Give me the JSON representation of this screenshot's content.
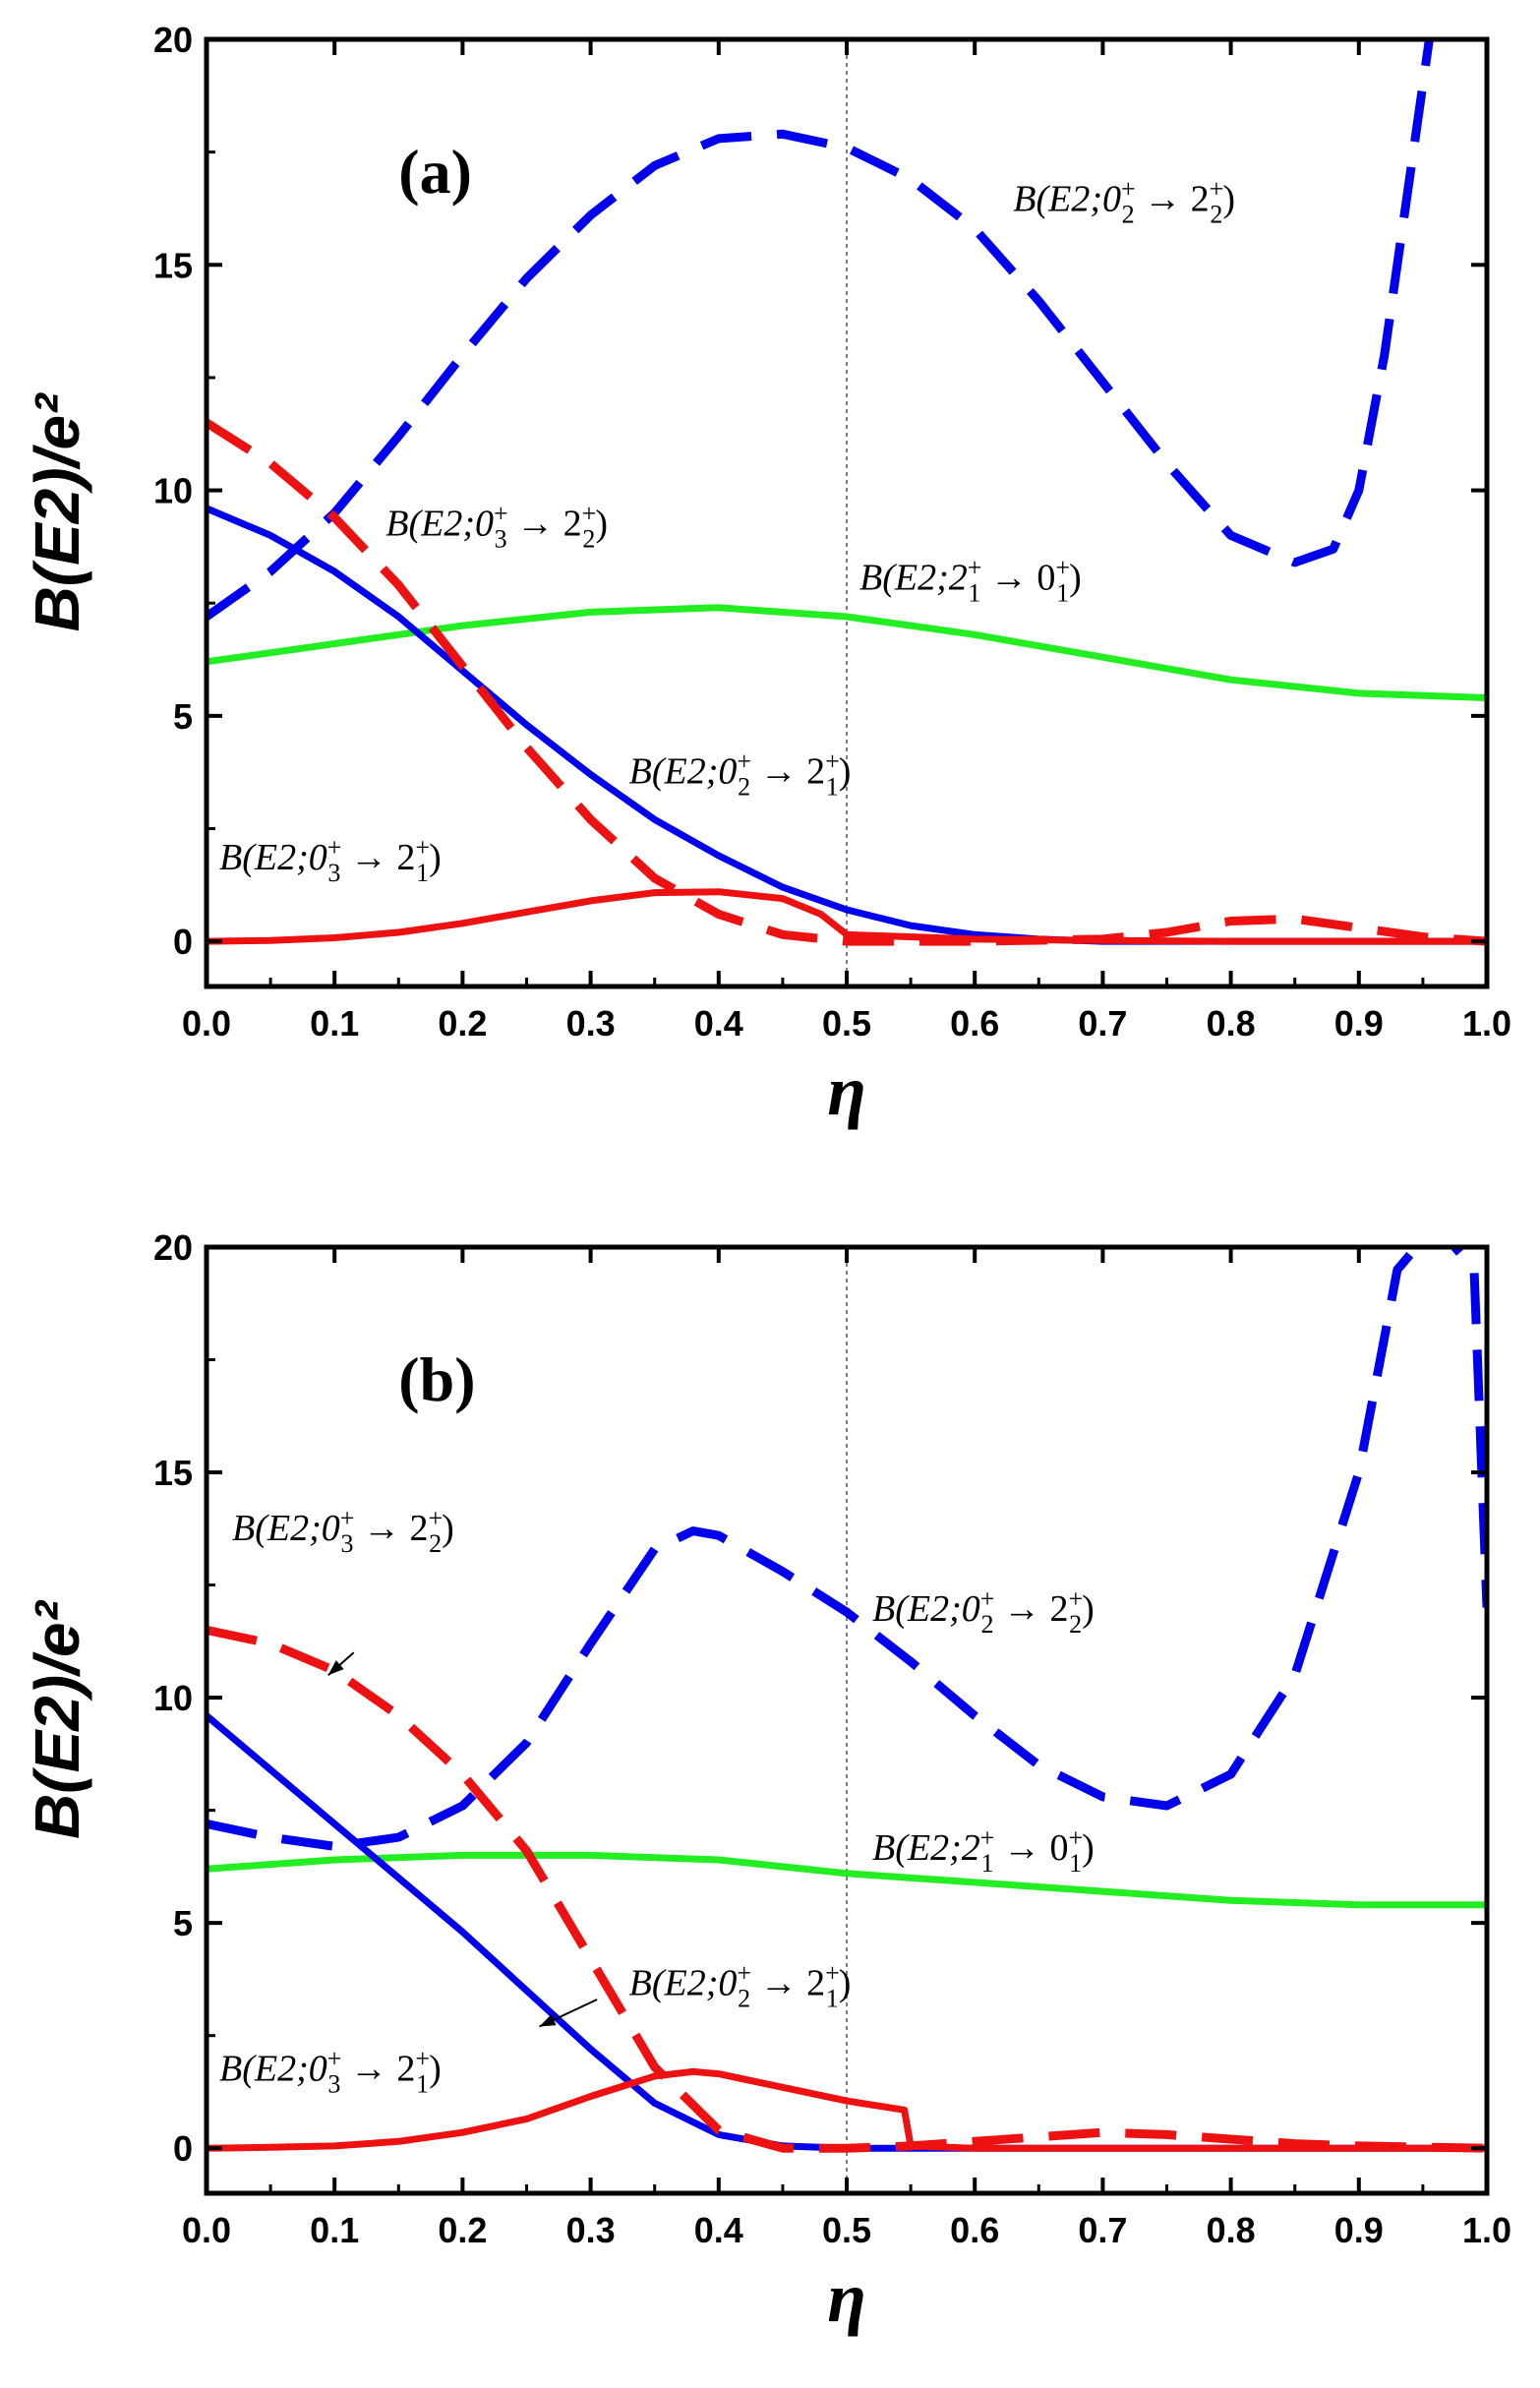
{
  "chart_data": [
    {
      "type": "line",
      "panel_label": "(a)",
      "xlabel": "η",
      "ylabel": "B(E2)/e²",
      "xlim": [
        0.0,
        1.0
      ],
      "ylim": [
        -1.0,
        20.0
      ],
      "xticks": [
        "0.0",
        "0.1",
        "0.2",
        "0.3",
        "0.4",
        "0.5",
        "0.6",
        "0.7",
        "0.8",
        "0.9",
        "1.0"
      ],
      "yticks": [
        "0",
        "5",
        "10",
        "15",
        "20"
      ],
      "reference_line_x": 0.5,
      "series": [
        {
          "name": "B(E2;0_2^+ → 2_2^+)",
          "color": "#0000ee",
          "style": "dashed",
          "x": [
            0.0,
            0.05,
            0.1,
            0.15,
            0.2,
            0.25,
            0.3,
            0.35,
            0.4,
            0.45,
            0.5,
            0.55,
            0.6,
            0.65,
            0.7,
            0.75,
            0.8,
            0.85,
            0.88,
            0.9,
            0.92,
            0.94,
            0.96
          ],
          "y": [
            7.2,
            8.2,
            9.5,
            11.2,
            13.0,
            14.7,
            16.1,
            17.2,
            17.8,
            17.9,
            17.6,
            16.9,
            15.8,
            14.2,
            12.4,
            10.6,
            9.0,
            8.4,
            8.7,
            10.0,
            13.0,
            17.0,
            21.0
          ]
        },
        {
          "name": "B(E2;2_1^+ → 0_1^+)",
          "color": "#22ee22",
          "style": "solid",
          "x": [
            0.0,
            0.1,
            0.2,
            0.3,
            0.4,
            0.5,
            0.6,
            0.7,
            0.8,
            0.9,
            1.0
          ],
          "y": [
            6.2,
            6.6,
            7.0,
            7.3,
            7.4,
            7.2,
            6.8,
            6.3,
            5.8,
            5.5,
            5.4
          ]
        },
        {
          "name": "B(E2;0_2^+ → 2_1^+)",
          "color": "#0000ee",
          "style": "solid",
          "x": [
            0.0,
            0.05,
            0.1,
            0.15,
            0.2,
            0.25,
            0.3,
            0.35,
            0.4,
            0.45,
            0.5,
            0.55,
            0.6,
            0.65,
            0.7,
            0.8,
            0.9,
            1.0
          ],
          "y": [
            9.6,
            9.0,
            8.2,
            7.2,
            6.0,
            4.8,
            3.7,
            2.7,
            1.9,
            1.2,
            0.7,
            0.35,
            0.15,
            0.05,
            0.0,
            0.0,
            0.0,
            0.0
          ]
        },
        {
          "name": "B(E2;0_3^+ → 2_2^+)",
          "color": "#ee1111",
          "style": "dashed",
          "x": [
            0.0,
            0.05,
            0.1,
            0.15,
            0.2,
            0.25,
            0.3,
            0.35,
            0.4,
            0.45,
            0.5,
            0.6,
            0.7,
            0.75,
            0.8,
            0.85,
            0.9,
            0.95,
            1.0
          ],
          "y": [
            11.5,
            10.6,
            9.4,
            7.9,
            6.1,
            4.3,
            2.7,
            1.4,
            0.6,
            0.15,
            0.0,
            0.0,
            0.05,
            0.2,
            0.45,
            0.5,
            0.3,
            0.1,
            0.0
          ]
        },
        {
          "name": "B(E2;0_3^+ → 2_1^+)",
          "color": "#ee1111",
          "style": "solid",
          "x": [
            0.0,
            0.05,
            0.1,
            0.15,
            0.2,
            0.25,
            0.3,
            0.35,
            0.4,
            0.45,
            0.48,
            0.5,
            0.6,
            0.7,
            0.8,
            0.9,
            1.0
          ],
          "y": [
            0.0,
            0.02,
            0.08,
            0.2,
            0.4,
            0.65,
            0.9,
            1.08,
            1.1,
            0.95,
            0.6,
            0.15,
            0.05,
            0.02,
            0.0,
            0.0,
            0.0
          ]
        }
      ],
      "annotations": [
        {
          "base": "B(E2;0",
          "sub1": "2",
          "mid": " → 2",
          "sub2": "2",
          "end": ")",
          "at": [
            0.63,
            16.2
          ]
        },
        {
          "base": "B(E2;0",
          "sub1": "3",
          "mid": " → 2",
          "sub2": "2",
          "end": ")",
          "at": [
            0.14,
            9.0
          ]
        },
        {
          "base": "B(E2;2",
          "sub1": "1",
          "mid": " → 0",
          "sub2": "1",
          "end": ")",
          "at": [
            0.51,
            7.8
          ]
        },
        {
          "base": "B(E2;0",
          "sub1": "2",
          "mid": " → 2",
          "sub2": "1",
          "end": ")",
          "at": [
            0.33,
            3.5
          ]
        },
        {
          "base": "B(E2;0",
          "sub1": "3",
          "mid": " → 2",
          "sub2": "1",
          "end": ")",
          "at": [
            0.01,
            1.6
          ]
        }
      ]
    },
    {
      "type": "line",
      "panel_label": "(b)",
      "xlabel": "η",
      "ylabel": "B(E2)/e²",
      "xlim": [
        0.0,
        1.0
      ],
      "ylim": [
        -1.0,
        20.0
      ],
      "xticks": [
        "0.0",
        "0.1",
        "0.2",
        "0.3",
        "0.4",
        "0.5",
        "0.6",
        "0.7",
        "0.8",
        "0.9",
        "1.0"
      ],
      "yticks": [
        "0",
        "5",
        "10",
        "15",
        "20"
      ],
      "reference_line_x": 0.5,
      "series": [
        {
          "name": "B(E2;0_2^+ → 2_2^+)",
          "color": "#0000ee",
          "style": "dashed",
          "x": [
            0.0,
            0.05,
            0.1,
            0.15,
            0.2,
            0.25,
            0.3,
            0.35,
            0.38,
            0.4,
            0.45,
            0.5,
            0.55,
            0.6,
            0.65,
            0.7,
            0.75,
            0.8,
            0.85,
            0.9,
            0.93,
            0.96,
            0.99,
            1.0
          ],
          "y": [
            7.2,
            6.9,
            6.7,
            6.9,
            7.6,
            9.0,
            11.2,
            13.3,
            13.7,
            13.6,
            12.8,
            11.9,
            10.8,
            9.6,
            8.5,
            7.8,
            7.6,
            8.3,
            10.5,
            15.0,
            19.5,
            20.5,
            19.5,
            12.0
          ]
        },
        {
          "name": "B(E2;2_1^+ → 0_1^+)",
          "color": "#22ee22",
          "style": "solid",
          "x": [
            0.0,
            0.1,
            0.2,
            0.3,
            0.4,
            0.5,
            0.6,
            0.7,
            0.8,
            0.9,
            1.0
          ],
          "y": [
            6.2,
            6.4,
            6.5,
            6.5,
            6.4,
            6.1,
            5.9,
            5.7,
            5.5,
            5.4,
            5.4
          ]
        },
        {
          "name": "B(E2;0_2^+ → 2_1^+)",
          "color": "#0000ee",
          "style": "solid",
          "x": [
            0.0,
            0.05,
            0.1,
            0.15,
            0.2,
            0.25,
            0.3,
            0.35,
            0.4,
            0.45,
            0.5,
            0.55,
            0.6,
            0.7,
            0.8,
            0.9,
            1.0
          ],
          "y": [
            9.6,
            8.4,
            7.2,
            6.0,
            4.8,
            3.5,
            2.2,
            1.0,
            0.3,
            0.05,
            0.0,
            0.0,
            0.0,
            0.0,
            0.0,
            0.0,
            0.0
          ]
        },
        {
          "name": "B(E2;0_3^+ → 2_2^+)",
          "color": "#ee1111",
          "style": "dashed",
          "x": [
            0.0,
            0.05,
            0.1,
            0.15,
            0.2,
            0.25,
            0.3,
            0.35,
            0.4,
            0.45,
            0.5,
            0.55,
            0.6,
            0.65,
            0.7,
            0.75,
            0.8,
            0.85,
            0.9,
            1.0
          ],
          "y": [
            11.5,
            11.2,
            10.6,
            9.6,
            8.3,
            6.6,
            4.2,
            1.8,
            0.4,
            0.0,
            0.0,
            0.05,
            0.15,
            0.25,
            0.35,
            0.3,
            0.2,
            0.1,
            0.05,
            0.0
          ]
        },
        {
          "name": "B(E2;0_3^+ → 2_1^+)",
          "color": "#ee1111",
          "style": "solid",
          "x": [
            0.0,
            0.05,
            0.1,
            0.15,
            0.2,
            0.25,
            0.3,
            0.35,
            0.38,
            0.4,
            0.45,
            0.5,
            0.545,
            0.55,
            0.6,
            0.7,
            0.8,
            0.9,
            1.0
          ],
          "y": [
            0.0,
            0.02,
            0.05,
            0.15,
            0.35,
            0.65,
            1.15,
            1.6,
            1.7,
            1.65,
            1.35,
            1.05,
            0.85,
            0.05,
            0.0,
            0.0,
            0.0,
            0.0,
            0.0
          ]
        }
      ],
      "annotations": [
        {
          "base": "B(E2;0",
          "sub1": "3",
          "mid": " → 2",
          "sub2": "2",
          "end": ")",
          "at": [
            0.02,
            13.5
          ]
        },
        {
          "base": "B(E2;0",
          "sub1": "2",
          "mid": " → 2",
          "sub2": "2",
          "end": ")",
          "at": [
            0.52,
            11.7
          ]
        },
        {
          "base": "B(E2;2",
          "sub1": "1",
          "mid": " → 0",
          "sub2": "1",
          "end": ")",
          "at": [
            0.52,
            6.4
          ]
        },
        {
          "base": "B(E2;0",
          "sub1": "2",
          "mid": " → 2",
          "sub2": "1",
          "end": ")",
          "at": [
            0.33,
            3.4
          ]
        },
        {
          "base": "B(E2;0",
          "sub1": "3",
          "mid": " → 2",
          "sub2": "1",
          "end": ")",
          "at": [
            0.01,
            1.5
          ]
        }
      ]
    }
  ]
}
